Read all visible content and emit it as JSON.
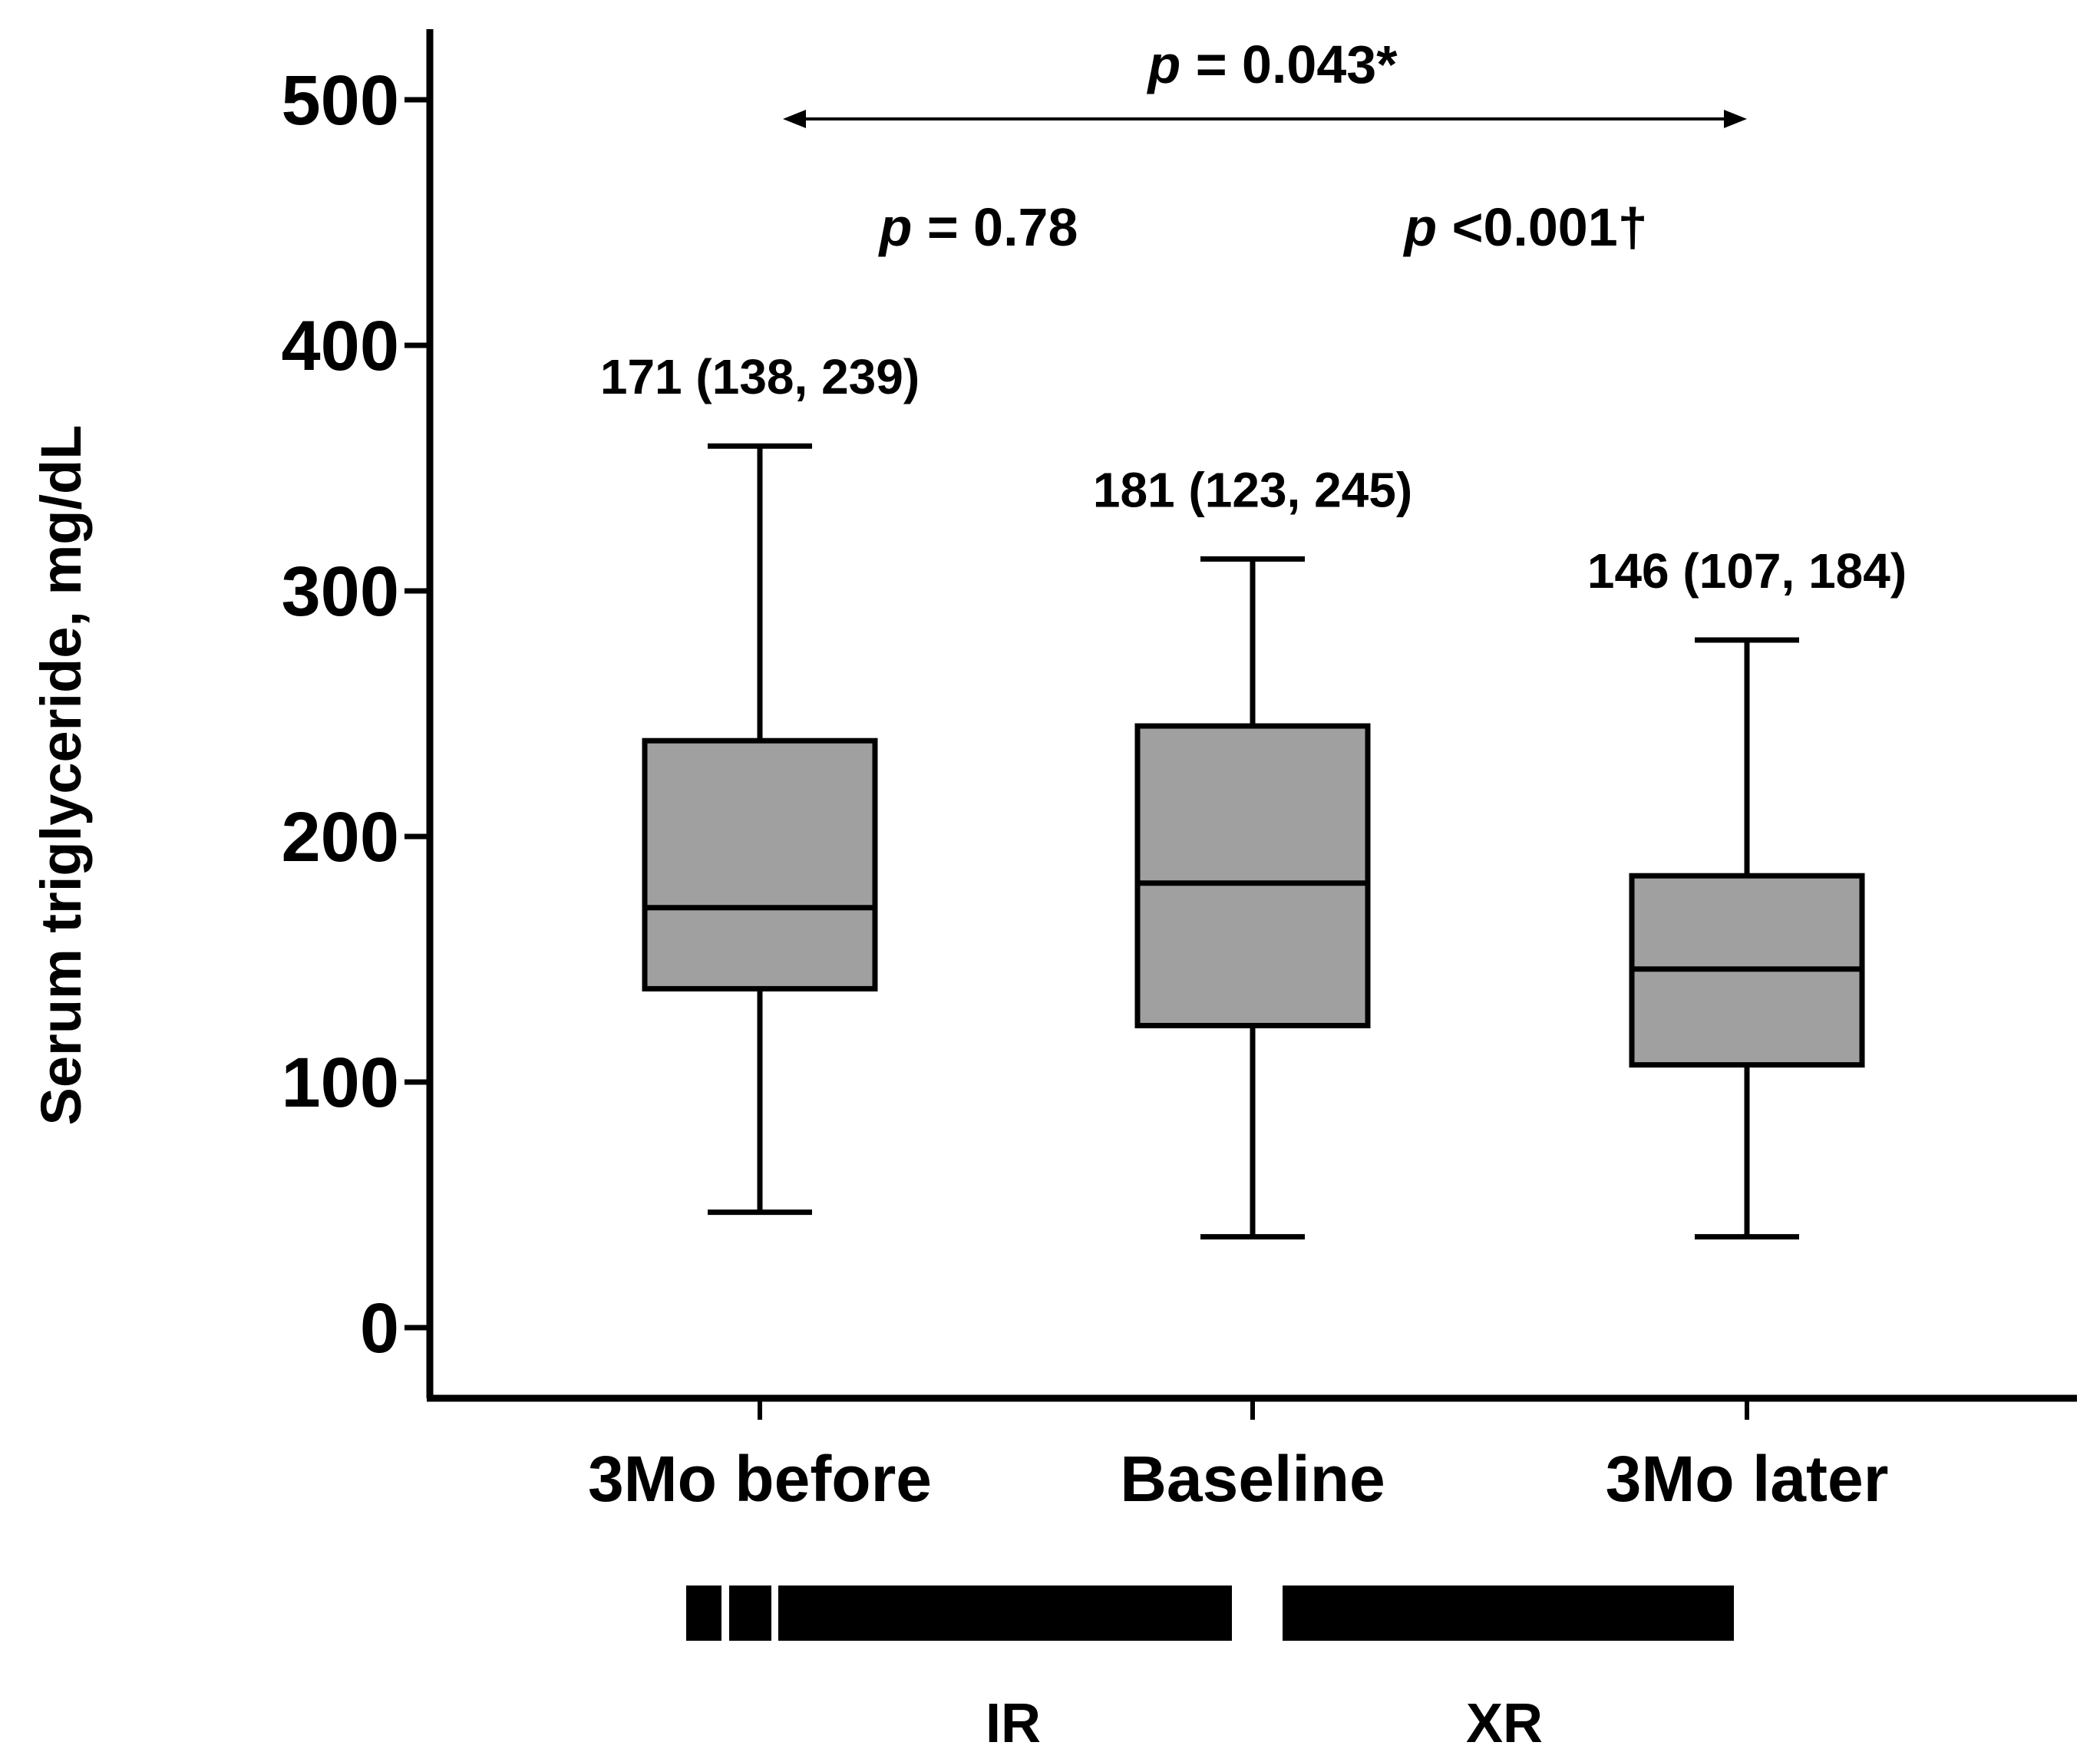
{
  "chart_data": {
    "type": "box",
    "ylabel": "Serum triglyceride, mg/dL",
    "xlabel": "",
    "ylim": [
      0,
      500
    ],
    "yticks": [
      0,
      100,
      200,
      300,
      400,
      500
    ],
    "categories": [
      "3Mo before",
      "Baseline",
      "3Mo later"
    ],
    "boxes": [
      {
        "category": "3Mo before",
        "whisker_low": 47,
        "q1": 138,
        "median": 171,
        "q3": 239,
        "whisker_high": 359,
        "label": "171 (138, 239)"
      },
      {
        "category": "Baseline",
        "whisker_low": 37,
        "q1": 123,
        "median": 181,
        "q3": 245,
        "whisker_high": 313,
        "label": "181 (123, 245)"
      },
      {
        "category": "3Mo later",
        "whisker_low": 37,
        "q1": 107,
        "median": 146,
        "q3": 184,
        "whisker_high": 280,
        "label": "146 (107, 184)"
      }
    ],
    "comparisons": [
      {
        "from": "3Mo before",
        "to": "3Mo later",
        "p_symbol": "p",
        "p_text": " = 0.043*"
      },
      {
        "from": "3Mo before",
        "to": "Baseline",
        "p_symbol": "p",
        "p_text": " = 0.78"
      },
      {
        "from": "Baseline",
        "to": "3Mo later",
        "p_symbol": "p",
        "p_text": " <0.001†"
      }
    ],
    "treatment_periods": [
      {
        "label": "IR"
      },
      {
        "label": "XR"
      }
    ],
    "colors": {
      "box_fill": "#a0a0a0",
      "stroke": "#000000"
    }
  }
}
